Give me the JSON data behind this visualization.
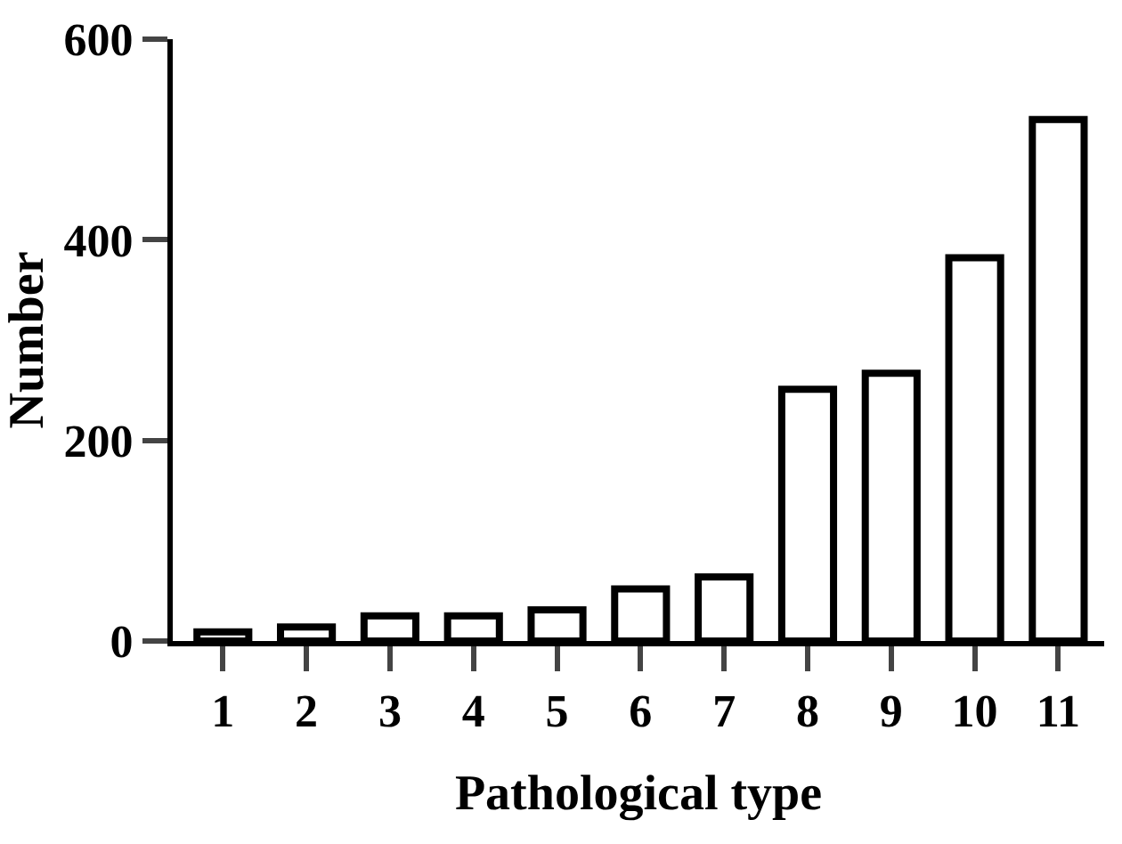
{
  "chart_data": {
    "type": "bar",
    "xlabel": "Pathological type",
    "ylabel": "Number",
    "categories": [
      "1",
      "2",
      "3",
      "4",
      "5",
      "6",
      "7",
      "8",
      "9",
      "10",
      "11"
    ],
    "values": [
      9,
      14,
      25,
      25,
      31,
      52,
      64,
      251,
      267,
      382,
      520
    ],
    "color": "#ffffff",
    "ylim": [
      0,
      600
    ],
    "yticks": [
      0,
      200,
      400,
      600
    ],
    "grid": false
  }
}
